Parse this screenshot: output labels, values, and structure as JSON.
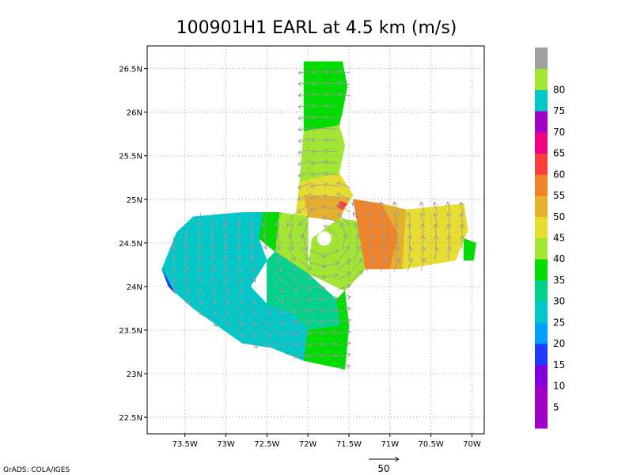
{
  "chart_data": {
    "type": "heatmap",
    "title": "100901H1 EARL at 4.5 km (m/s)",
    "x_axis": {
      "ticks": [
        {
          "value": -73.5,
          "label": "73.5W"
        },
        {
          "value": -73.0,
          "label": "73W"
        },
        {
          "value": -72.5,
          "label": "72.5W"
        },
        {
          "value": -72.0,
          "label": "72W"
        },
        {
          "value": -71.5,
          "label": "71.5W"
        },
        {
          "value": -71.0,
          "label": "71W"
        },
        {
          "value": -70.5,
          "label": "70.5W"
        },
        {
          "value": -70.0,
          "label": "70W"
        }
      ],
      "range": [
        -73.96,
        -69.85
      ]
    },
    "y_axis": {
      "ticks": [
        {
          "value": 22.5,
          "label": "22.5N"
        },
        {
          "value": 23.0,
          "label": "23N"
        },
        {
          "value": 23.5,
          "label": "23.5N"
        },
        {
          "value": 24.0,
          "label": "24N"
        },
        {
          "value": 24.5,
          "label": "24.5N"
        },
        {
          "value": 25.0,
          "label": "25N"
        },
        {
          "value": 25.5,
          "label": "25.5N"
        },
        {
          "value": 26.0,
          "label": "26N"
        },
        {
          "value": 26.5,
          "label": "26.5N"
        }
      ],
      "range": [
        22.31,
        26.76
      ]
    },
    "grid": true,
    "grid_style": "dotted",
    "colorbar": {
      "position": "right",
      "levels": [
        {
          "label": "",
          "color": "#a000c8"
        },
        {
          "label": "5",
          "color": "#a000c8"
        },
        {
          "label": "10",
          "color": "#8200dc"
        },
        {
          "label": "15",
          "color": "#1e3cff"
        },
        {
          "label": "20",
          "color": "#00a0ff"
        },
        {
          "label": "25",
          "color": "#00c8c8"
        },
        {
          "label": "30",
          "color": "#00d28c"
        },
        {
          "label": "35",
          "color": "#00dc00"
        },
        {
          "label": "40",
          "color": "#a0e632"
        },
        {
          "label": "45",
          "color": "#e6dc32"
        },
        {
          "label": "50",
          "color": "#e6af2d"
        },
        {
          "label": "55",
          "color": "#f08228"
        },
        {
          "label": "60",
          "color": "#fa3c3c"
        },
        {
          "label": "65",
          "color": "#f00082"
        },
        {
          "label": "70",
          "color": "#a000c8"
        },
        {
          "label": "75",
          "color": "#00c8c8"
        },
        {
          "label": "80",
          "color": "#a0e632"
        },
        {
          "label": "",
          "color": "#a0a0a0"
        }
      ]
    },
    "regions": [
      {
        "value": 33,
        "color": "#00dc00",
        "poly": [
          [
            -72.05,
            26.58
          ],
          [
            -71.58,
            26.58
          ],
          [
            -71.52,
            26.3
          ],
          [
            -71.58,
            26.0
          ],
          [
            -71.62,
            25.85
          ],
          [
            -72.05,
            25.78
          ]
        ]
      },
      {
        "value": 40,
        "color": "#a0e632",
        "poly": [
          [
            -72.05,
            25.78
          ],
          [
            -71.62,
            25.85
          ],
          [
            -71.55,
            25.62
          ],
          [
            -71.62,
            25.3
          ],
          [
            -72.1,
            25.2
          ]
        ]
      },
      {
        "value": 45,
        "color": "#e6dc32",
        "poly": [
          [
            -72.1,
            25.2
          ],
          [
            -71.62,
            25.3
          ],
          [
            -71.45,
            25.05
          ],
          [
            -71.62,
            24.78
          ],
          [
            -72.15,
            24.8
          ]
        ]
      },
      {
        "value": 48,
        "color": "#e6af2d",
        "poly": [
          [
            -72.05,
            25.05
          ],
          [
            -71.5,
            25.02
          ],
          [
            -71.62,
            24.75
          ],
          [
            -72.0,
            24.8
          ]
        ]
      },
      {
        "value": 40,
        "color": "#a0e632",
        "poly": [
          [
            -72.35,
            24.85
          ],
          [
            -72.0,
            24.8
          ],
          [
            -72.0,
            24.15
          ],
          [
            -72.4,
            24.4
          ]
        ]
      },
      {
        "value": 36,
        "color": "#00dc00",
        "poly": [
          [
            -72.55,
            24.85
          ],
          [
            -72.35,
            24.85
          ],
          [
            -72.4,
            24.4
          ],
          [
            -72.6,
            24.55
          ]
        ]
      },
      {
        "value": 40,
        "color": "#a0e632",
        "poly": [
          [
            -71.62,
            24.78
          ],
          [
            -71.4,
            24.75
          ],
          [
            -71.3,
            24.2
          ],
          [
            -71.55,
            23.95
          ],
          [
            -72.0,
            24.15
          ],
          [
            -71.95,
            24.55
          ]
        ]
      },
      {
        "value": 53,
        "color": "#f08228",
        "poly": [
          [
            -71.45,
            25.0
          ],
          [
            -71.1,
            24.95
          ],
          [
            -70.9,
            24.6
          ],
          [
            -71.0,
            24.2
          ],
          [
            -71.3,
            24.2
          ],
          [
            -71.4,
            24.75
          ]
        ]
      },
      {
        "value": 48,
        "color": "#e6af2d",
        "poly": [
          [
            -71.1,
            24.95
          ],
          [
            -70.8,
            24.88
          ],
          [
            -70.85,
            24.2
          ],
          [
            -71.0,
            24.2
          ],
          [
            -70.9,
            24.6
          ]
        ]
      },
      {
        "value": 45,
        "color": "#e6dc32",
        "poly": [
          [
            -70.8,
            24.88
          ],
          [
            -70.1,
            24.95
          ],
          [
            -70.05,
            24.65
          ],
          [
            -70.2,
            24.3
          ],
          [
            -70.85,
            24.2
          ]
        ]
      },
      {
        "value": 36,
        "color": "#00dc00",
        "poly": [
          [
            -70.1,
            24.55
          ],
          [
            -69.95,
            24.5
          ],
          [
            -69.98,
            24.3
          ],
          [
            -70.1,
            24.3
          ]
        ]
      },
      {
        "value": 28,
        "color": "#00c8c8",
        "poly": [
          [
            -72.8,
            24.85
          ],
          [
            -72.55,
            24.85
          ],
          [
            -72.6,
            24.55
          ],
          [
            -72.5,
            24.3
          ],
          [
            -72.7,
            24.0
          ],
          [
            -73.1,
            24.15
          ],
          [
            -73.3,
            24.4
          ],
          [
            -73.6,
            24.62
          ],
          [
            -73.4,
            24.8
          ]
        ]
      },
      {
        "value": 25,
        "color": "#00c8c8",
        "poly": [
          [
            -73.6,
            24.62
          ],
          [
            -73.3,
            24.4
          ],
          [
            -73.1,
            24.15
          ],
          [
            -72.7,
            24.0
          ],
          [
            -72.5,
            23.8
          ],
          [
            -72.2,
            23.7
          ],
          [
            -72.0,
            23.5
          ],
          [
            -72.05,
            23.15
          ],
          [
            -72.45,
            23.3
          ],
          [
            -72.8,
            23.35
          ],
          [
            -73.1,
            23.55
          ],
          [
            -73.4,
            23.75
          ],
          [
            -73.7,
            24.0
          ],
          [
            -73.78,
            24.2
          ]
        ]
      },
      {
        "value": 30,
        "color": "#00d28c",
        "poly": [
          [
            -72.5,
            24.3
          ],
          [
            -72.4,
            24.4
          ],
          [
            -72.0,
            24.15
          ],
          [
            -71.65,
            23.85
          ],
          [
            -71.6,
            23.55
          ],
          [
            -72.0,
            23.5
          ],
          [
            -72.2,
            23.7
          ],
          [
            -72.5,
            23.8
          ]
        ]
      },
      {
        "value": 35,
        "color": "#00dc00",
        "poly": [
          [
            -71.65,
            23.85
          ],
          [
            -71.55,
            23.95
          ],
          [
            -71.5,
            23.55
          ],
          [
            -71.55,
            23.05
          ],
          [
            -72.05,
            23.15
          ],
          [
            -72.0,
            23.5
          ],
          [
            -71.6,
            23.55
          ]
        ]
      },
      {
        "value": 18,
        "color": "#1e3cff",
        "poly": [
          [
            -73.78,
            24.2
          ],
          [
            -73.7,
            24.0
          ],
          [
            -73.62,
            23.92
          ],
          [
            -73.75,
            24.15
          ]
        ]
      },
      {
        "value": 62,
        "color": "#fa3c3c",
        "poly": [
          [
            -71.6,
            24.98
          ],
          [
            -71.52,
            24.95
          ],
          [
            -71.58,
            24.88
          ],
          [
            -71.65,
            24.92
          ]
        ]
      }
    ],
    "calm_center": {
      "lon": -71.8,
      "lat": 24.55
    }
  },
  "vector_reference": {
    "label": "50"
  },
  "credit": "GrADS: COLA/IGES"
}
